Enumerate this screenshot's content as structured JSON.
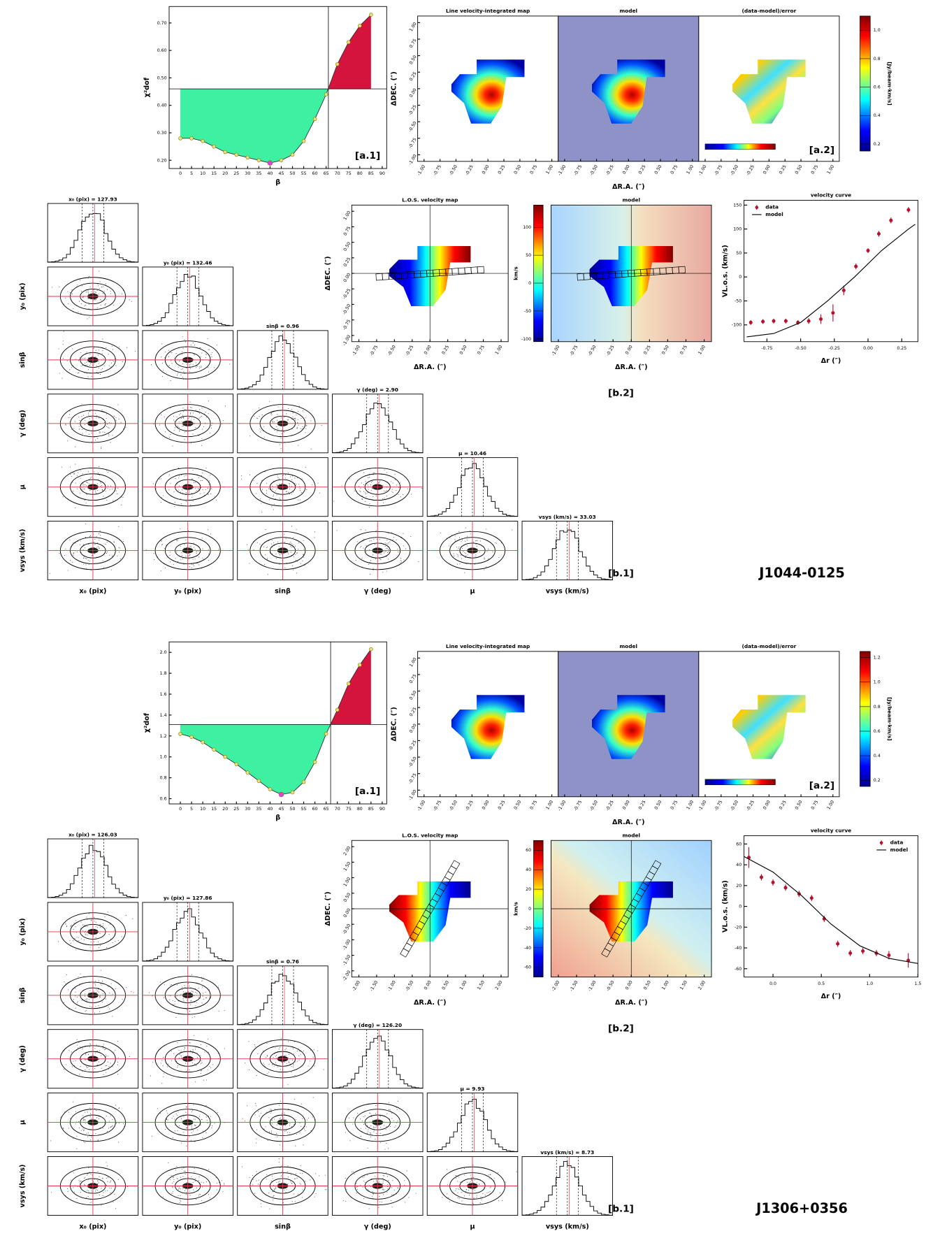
{
  "chart_data": [
    {
      "type": "area",
      "xlabel": "β",
      "ylabel": "χ²dof",
      "annotation": "[a.1]",
      "x": [
        0,
        5,
        10,
        15,
        20,
        25,
        30,
        35,
        40,
        45,
        50,
        55,
        60,
        65,
        70,
        75,
        80,
        85
      ],
      "values": [
        0.28,
        0.28,
        0.27,
        0.25,
        0.23,
        0.22,
        0.21,
        0.2,
        0.19,
        0.2,
        0.22,
        0.27,
        0.35,
        0.44,
        0.55,
        0.63,
        0.69,
        0.73
      ],
      "hline": 0.46,
      "vline": 66,
      "below_color": "#3ef0a2",
      "above_color": "#d4143c",
      "marker_color": "#e4e07a",
      "min_color": "#e040e0",
      "xlim": [
        -5,
        92
      ],
      "ylim": [
        0.17,
        0.76
      ],
      "xticks": [
        0,
        5,
        10,
        15,
        20,
        25,
        30,
        35,
        40,
        45,
        50,
        55,
        60,
        65,
        70,
        75,
        80,
        85,
        90
      ],
      "yticks": [
        {
          "value": 0.2,
          "label": "0.20"
        },
        {
          "value": 0.3,
          "label": "0.30"
        },
        {
          "value": 0.4,
          "label": "0.40"
        },
        {
          "value": 0.5,
          "label": "0.50"
        },
        {
          "value": 0.6,
          "label": "0.60"
        },
        {
          "value": 0.7,
          "label": "0.70"
        }
      ]
    },
    {
      "type": "heatmap",
      "titles": [
        "Line velocity-integrated map",
        "model",
        "(data-model)/error"
      ],
      "xlabel": "ΔR.A. (″)",
      "ylabel": "ΔDEC. (″)",
      "annotation": "[a.2]",
      "background": "#8f92c6",
      "xlim": [
        -1.1,
        1.1
      ],
      "ylim": [
        -1.1,
        1.1
      ],
      "xticks": [
        {
          "value": -1,
          "label": "-1.00"
        },
        -0.75,
        {
          "value": -0.5,
          "label": "-0.50"
        },
        -0.25,
        {
          "value": 0,
          "label": "0.00"
        },
        0.25,
        {
          "value": 0.5,
          "label": "0.50"
        },
        0.75,
        {
          "value": 1,
          "label": "1.00"
        }
      ],
      "yticks": [
        {
          "value": -1,
          "label": "-1.00"
        },
        -0.75,
        {
          "value": -0.5,
          "label": "-0.50"
        },
        -0.25,
        {
          "value": 0,
          "label": "0.00"
        },
        0.25,
        {
          "value": 0.5,
          "label": "0.50"
        },
        0.75,
        {
          "value": 1,
          "label": "1.00"
        }
      ],
      "colorbar": {
        "label": "[Jy/beam·km/s]",
        "lim": [
          0.15,
          1.1
        ],
        "ticks": [
          0.2,
          0.4,
          0.6,
          0.8,
          {
            "value": 1,
            "label": "1.0"
          }
        ]
      }
    },
    {
      "type": "corner",
      "labels": [
        "x₀ (pix)",
        "y₀ (pix)",
        "sinβ",
        "γ (deg)",
        "μ",
        "vsys (km/s)"
      ],
      "titles": [
        "x₀ (pix) = 127.93",
        "y₀ (pix) = 132.46",
        "sinβ = 0.96",
        "γ (deg) = 2.90",
        "μ = 10.46",
        "vsys (km/s) = 33.03"
      ],
      "annotation": "[b.1]",
      "object": "J1044-0125",
      "line_color": "#e8334a"
    },
    {
      "type": "heatmap",
      "titles": [
        "L.O.S. velocity map",
        "model"
      ],
      "xlabel": "ΔR.A. (″)",
      "ylabel": "ΔDEC. (″)",
      "annotation": "[b.2]",
      "xlim": [
        -1.1,
        1.1
      ],
      "ylim": [
        -1.1,
        1.1
      ],
      "xticks": [
        {
          "value": -1,
          "label": "-1.00"
        },
        -0.75,
        {
          "value": -0.5,
          "label": "-0.50"
        },
        -0.25,
        {
          "value": 0,
          "label": "0.00"
        },
        0.25,
        {
          "value": 0.5,
          "label": "0.50"
        },
        0.75,
        {
          "value": 1,
          "label": "1.00"
        }
      ],
      "yticks": [
        {
          "value": -1,
          "label": "-1.00"
        },
        -0.75,
        {
          "value": -0.5,
          "label": "-0.50"
        },
        -0.25,
        {
          "value": 0,
          "label": "0.00"
        },
        0.25,
        {
          "value": 0.5,
          "label": "0.50"
        },
        0.75,
        {
          "value": 1,
          "label": "1.00"
        }
      ],
      "colorbar": {
        "label": "km/s",
        "lim": [
          -105,
          140
        ],
        "ticks": [
          -100,
          -50,
          0,
          50,
          100
        ]
      }
    },
    {
      "type": "errorbar",
      "title": "velocity curve",
      "xlabel": "Δr (″)",
      "ylabel": "VL.o.s. (km/s)",
      "legend": "upper left",
      "xlim": [
        -0.92,
        0.37
      ],
      "ylim": [
        -135,
        160
      ],
      "xticks": [
        -0.75,
        {
          "value": -0.5,
          "label": "-0.50"
        },
        -0.25,
        {
          "value": 0,
          "label": "0.00"
        },
        0.25
      ],
      "yticks": [
        -100,
        -50,
        0,
        50,
        100,
        150
      ],
      "series": [
        {
          "name": "data",
          "color": "#b8102c",
          "x": [
            -0.87,
            -0.78,
            -0.7,
            -0.61,
            -0.52,
            -0.44,
            -0.35,
            -0.26,
            -0.18,
            -0.09,
            0.0,
            0.08,
            0.17,
            0.3
          ],
          "values": [
            -95,
            -93,
            -92,
            -92,
            -95,
            -92,
            -88,
            -75,
            -28,
            22,
            55,
            90,
            118,
            140
          ],
          "errors": [
            5,
            5,
            5,
            5,
            5,
            6,
            10,
            18,
            10,
            6,
            5,
            6,
            6,
            6
          ]
        },
        {
          "name": "model",
          "color": "#000000",
          "x": [
            -0.9,
            -0.7,
            -0.5,
            -0.3,
            -0.1,
            0.1,
            0.3,
            0.35
          ],
          "values": [
            -125,
            -118,
            -95,
            -50,
            0,
            55,
            100,
            110
          ]
        }
      ]
    },
    {
      "type": "area",
      "xlabel": "β",
      "ylabel": "χ²dof",
      "annotation": "[a.1]",
      "x": [
        0,
        5,
        10,
        15,
        20,
        25,
        30,
        35,
        40,
        45,
        50,
        55,
        60,
        65,
        70,
        75,
        80,
        85
      ],
      "values": [
        1.22,
        1.19,
        1.14,
        1.07,
        1.0,
        0.93,
        0.85,
        0.77,
        0.69,
        0.64,
        0.66,
        0.76,
        0.95,
        1.22,
        1.45,
        1.7,
        1.88,
        2.03
      ],
      "hline": 1.31,
      "vline": 67,
      "below_color": "#3ef0a2",
      "above_color": "#d4143c",
      "marker_color": "#e4e07a",
      "min_color": "#e040e0",
      "xlim": [
        -5,
        92
      ],
      "ylim": [
        0.55,
        2.1
      ],
      "xticks": [
        0,
        5,
        10,
        15,
        20,
        25,
        30,
        35,
        40,
        45,
        50,
        55,
        60,
        65,
        70,
        75,
        80,
        85,
        90
      ],
      "yticks": [
        0.6,
        0.8,
        {
          "value": 1,
          "label": "1.0"
        },
        1.2,
        1.4,
        1.6,
        1.8,
        {
          "value": 2,
          "label": "2.0"
        }
      ]
    },
    {
      "type": "heatmap",
      "titles": [
        "Line velocity-integrated map",
        "model",
        "(data-model)/error"
      ],
      "xlabel": "ΔR.A. (″)",
      "ylabel": "ΔDEC. (″)",
      "annotation": "[a.2]",
      "background": "#8f92c6",
      "xlim": [
        -1.1,
        1.1
      ],
      "ylim": [
        -1.1,
        1.1
      ],
      "xticks": [
        {
          "value": -1,
          "label": "-1.00"
        },
        -0.75,
        {
          "value": -0.5,
          "label": "-0.50"
        },
        -0.25,
        {
          "value": 0,
          "label": "0.00"
        },
        0.25,
        {
          "value": 0.5,
          "label": "0.50"
        },
        0.75,
        {
          "value": 1,
          "label": "1.00"
        }
      ],
      "yticks": [
        {
          "value": -1,
          "label": "-1.00"
        },
        -0.75,
        {
          "value": -0.5,
          "label": "-0.50"
        },
        -0.25,
        {
          "value": 0,
          "label": "0.00"
        },
        0.25,
        {
          "value": 0.5,
          "label": "0.50"
        },
        0.75,
        {
          "value": 1,
          "label": "1.00"
        }
      ],
      "colorbar": {
        "label": "[Jy/beam·km/s]",
        "lim": [
          0.15,
          1.25
        ],
        "ticks": [
          0.2,
          0.4,
          0.6,
          0.8,
          {
            "value": 1,
            "label": "1.0"
          },
          1.2
        ]
      }
    },
    {
      "type": "corner",
      "labels": [
        "x₀ (pix)",
        "y₀ (pix)",
        "sinβ",
        "γ (deg)",
        "μ",
        "vsys (km/s)"
      ],
      "titles": [
        "x₀ (pix) = 126.03",
        "y₀ (pix) = 127.86",
        "sinβ = 0.76",
        "γ (deg) = 126.20",
        "μ = 9.93",
        "vsys (km/s) = 8.73"
      ],
      "annotation": "[b.1]",
      "object": "J1306+0356",
      "line_color": "#e8334a"
    },
    {
      "type": "heatmap",
      "titles": [
        "L.O.S. velocity map",
        "model"
      ],
      "xlabel": "ΔR.A. (″)",
      "ylabel": "ΔDEC. (″)",
      "annotation": "[b.2]",
      "xlim": [
        -2.2,
        2.2
      ],
      "ylim": [
        -2.2,
        2.2
      ],
      "xticks": [
        {
          "value": -2,
          "label": "-2.00"
        },
        {
          "value": -1.5,
          "label": "-1.50"
        },
        {
          "value": -1,
          "label": "-1.00"
        },
        {
          "value": -0.5,
          "label": "-0.50"
        },
        {
          "value": 0,
          "label": "0.00"
        },
        {
          "value": 0.5,
          "label": "0.50"
        },
        {
          "value": 1,
          "label": "1.00"
        },
        {
          "value": 1.5,
          "label": "1.50"
        },
        {
          "value": 2,
          "label": "2.00"
        }
      ],
      "yticks": [
        {
          "value": -2,
          "label": "-2.00"
        },
        {
          "value": -1.5,
          "label": "-1.50"
        },
        {
          "value": -1,
          "label": "-1.00"
        },
        {
          "value": -0.5,
          "label": "-0.50"
        },
        {
          "value": 0,
          "label": "0.00"
        },
        {
          "value": 0.5,
          "label": "0.50"
        },
        {
          "value": 1,
          "label": "1.00"
        },
        {
          "value": 1.5,
          "label": "1.50"
        },
        {
          "value": 2,
          "label": "2.00"
        }
      ],
      "colorbar": {
        "label": "km/s",
        "lim": [
          -70,
          70
        ],
        "ticks": [
          -60,
          -40,
          -20,
          0,
          20,
          40,
          60
        ]
      }
    },
    {
      "type": "errorbar",
      "title": "velocity curve",
      "xlabel": "Δr (″)",
      "ylabel": "VL.o.s. (km/s)",
      "legend": "upper right",
      "xlim": [
        -0.3,
        1.5
      ],
      "ylim": [
        -68,
        68
      ],
      "xticks": [
        -0.5,
        {
          "value": 0,
          "label": "0.0"
        },
        0.5,
        {
          "value": 1,
          "label": "1.0"
        },
        1.5
      ],
      "yticks": [
        -60,
        -40,
        -20,
        0,
        20,
        40,
        60
      ],
      "series": [
        {
          "name": "data",
          "color": "#b8102c",
          "x": [
            -0.25,
            -0.12,
            0.0,
            0.13,
            0.27,
            0.4,
            0.53,
            0.67,
            0.8,
            0.93,
            1.07,
            1.2,
            1.4
          ],
          "values": [
            47,
            28,
            23,
            18,
            12,
            8,
            -12,
            -36,
            -45,
            -43,
            -45,
            -47,
            -52
          ],
          "errors": [
            10,
            3,
            3,
            3,
            3,
            3,
            3,
            3,
            3,
            3,
            3,
            4,
            7
          ]
        },
        {
          "name": "model",
          "color": "#000000",
          "x": [
            -0.3,
            0.0,
            0.3,
            0.6,
            0.9,
            1.2,
            1.5
          ],
          "values": [
            48,
            33,
            10,
            -17,
            -38,
            -50,
            -55
          ]
        }
      ]
    }
  ]
}
